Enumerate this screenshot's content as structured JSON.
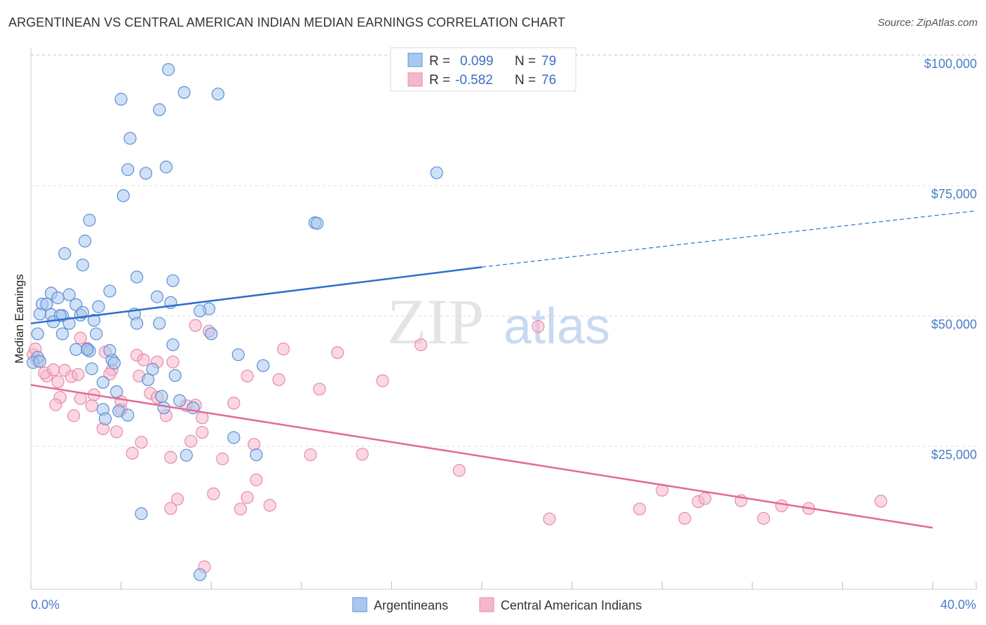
{
  "title": "ARGENTINEAN VS CENTRAL AMERICAN INDIAN MEDIAN EARNINGS CORRELATION CHART",
  "source": "Source: ZipAtlas.com",
  "watermark": {
    "zip": "ZIP",
    "atlas": "atlas"
  },
  "colors": {
    "blue_fill": "#a9c8ef",
    "blue_stroke": "#5b8fd6",
    "blue_line": "#2f6fcf",
    "pink_fill": "#f5b8cb",
    "pink_stroke": "#e889a8",
    "pink_line": "#e46a95",
    "tick": "#4a7cc9",
    "grid": "#dddddd"
  },
  "legend_stats": [
    {
      "r_label": "R = ",
      "r_value": "0.099",
      "n_label": "N = ",
      "n_value": "79",
      "series": "blue"
    },
    {
      "r_label": "R = ",
      "r_value": "-0.582",
      "n_label": "N = ",
      "n_value": "76",
      "series": "pink"
    }
  ],
  "chart_data": {
    "type": "scatter",
    "ylabel": "Median Earnings",
    "xlim": [
      0,
      40
    ],
    "ylim": [
      0,
      105000
    ],
    "y_ticks": [
      {
        "value": 25000,
        "label": "$25,000"
      },
      {
        "value": 50000,
        "label": "$50,000"
      },
      {
        "value": 75000,
        "label": "$75,000"
      },
      {
        "value": 100000,
        "label": "$100,000"
      }
    ],
    "x_tick_labels": [
      {
        "value": 0,
        "label": "0.0%"
      },
      {
        "value": 40,
        "label": "40.0%"
      }
    ],
    "x_minor_ticks": [
      0,
      4,
      8,
      12,
      16,
      20,
      24,
      28,
      32,
      36,
      40
    ],
    "legend": [
      "Argentineans",
      "Central American Indians"
    ],
    "series": [
      {
        "name": "Argentineans",
        "color": "blue",
        "trend": {
          "x1": 0,
          "y1": 51000,
          "x2": 20,
          "y2": 61800,
          "x_dash_end": 40,
          "y_dash_end": 72600
        },
        "points": [
          [
            6.1,
            99700
          ],
          [
            4.0,
            94000
          ],
          [
            6.8,
            95300
          ],
          [
            8.3,
            95000
          ],
          [
            5.7,
            92000
          ],
          [
            4.4,
            86500
          ],
          [
            4.3,
            80500
          ],
          [
            5.1,
            79800
          ],
          [
            6.0,
            81000
          ],
          [
            18.0,
            79900
          ],
          [
            4.1,
            75500
          ],
          [
            2.6,
            70800
          ],
          [
            12.6,
            70300
          ],
          [
            12.7,
            70200
          ],
          [
            2.4,
            66800
          ],
          [
            1.5,
            64400
          ],
          [
            2.3,
            62200
          ],
          [
            4.7,
            59900
          ],
          [
            6.3,
            59200
          ],
          [
            3.5,
            57200
          ],
          [
            0.9,
            56800
          ],
          [
            1.7,
            56500
          ],
          [
            1.2,
            55900
          ],
          [
            5.6,
            56100
          ],
          [
            6.2,
            55000
          ],
          [
            0.5,
            54700
          ],
          [
            0.7,
            54700
          ],
          [
            2.0,
            54600
          ],
          [
            3.0,
            54200
          ],
          [
            7.9,
            53800
          ],
          [
            0.4,
            52800
          ],
          [
            0.9,
            52700
          ],
          [
            1.4,
            52500
          ],
          [
            1.3,
            52500
          ],
          [
            2.2,
            52600
          ],
          [
            2.3,
            53100
          ],
          [
            4.6,
            52800
          ],
          [
            1.0,
            51300
          ],
          [
            2.8,
            51600
          ],
          [
            1.7,
            51000
          ],
          [
            4.7,
            51000
          ],
          [
            5.7,
            51000
          ],
          [
            0.3,
            49000
          ],
          [
            1.4,
            49000
          ],
          [
            2.9,
            49000
          ],
          [
            8.0,
            49000
          ],
          [
            6.3,
            46900
          ],
          [
            2.5,
            46000
          ],
          [
            9.2,
            45000
          ],
          [
            2.6,
            45700
          ],
          [
            3.6,
            44000
          ],
          [
            3.7,
            43400
          ],
          [
            10.3,
            42900
          ],
          [
            2.7,
            42300
          ],
          [
            5.4,
            42200
          ],
          [
            6.4,
            41000
          ],
          [
            5.2,
            40200
          ],
          [
            3.2,
            39700
          ],
          [
            0.3,
            44500
          ],
          [
            3.8,
            37900
          ],
          [
            5.8,
            37000
          ],
          [
            6.6,
            36200
          ],
          [
            3.2,
            34500
          ],
          [
            5.9,
            34800
          ],
          [
            7.2,
            34800
          ],
          [
            3.9,
            34200
          ],
          [
            3.3,
            32700
          ],
          [
            4.3,
            33400
          ],
          [
            9.0,
            29100
          ],
          [
            10.0,
            25800
          ],
          [
            6.9,
            25700
          ],
          [
            4.9,
            14500
          ],
          [
            7.5,
            2800
          ],
          [
            0.1,
            43500
          ],
          [
            0.4,
            43700
          ],
          [
            3.5,
            45800
          ],
          [
            2.5,
            46000
          ],
          [
            7.5,
            53400
          ],
          [
            2.0,
            46000
          ]
        ]
      },
      {
        "name": "Central American Indians",
        "color": "pink",
        "trend": {
          "x1": 0,
          "y1": 39200,
          "x2": 40,
          "y2": 11800
        },
        "points": [
          [
            0.1,
            45000
          ],
          [
            0.3,
            43800
          ],
          [
            0.7,
            40900
          ],
          [
            0.6,
            41500
          ],
          [
            1.0,
            42100
          ],
          [
            1.2,
            39800
          ],
          [
            1.5,
            42000
          ],
          [
            1.8,
            40800
          ],
          [
            2.2,
            48200
          ],
          [
            2.5,
            46200
          ],
          [
            1.9,
            33300
          ],
          [
            1.3,
            36800
          ],
          [
            1.1,
            35400
          ],
          [
            2.2,
            36600
          ],
          [
            2.8,
            37300
          ],
          [
            2.7,
            35200
          ],
          [
            3.3,
            45500
          ],
          [
            3.6,
            42100
          ],
          [
            3.5,
            41300
          ],
          [
            4.0,
            34500
          ],
          [
            4.0,
            36000
          ],
          [
            4.7,
            44900
          ],
          [
            5.0,
            44000
          ],
          [
            5.6,
            43600
          ],
          [
            6.3,
            43600
          ],
          [
            4.8,
            40900
          ],
          [
            5.3,
            37600
          ],
          [
            5.6,
            36800
          ],
          [
            6.0,
            33300
          ],
          [
            6.9,
            35200
          ],
          [
            7.3,
            35300
          ],
          [
            7.6,
            32900
          ],
          [
            3.2,
            30800
          ],
          [
            3.8,
            30200
          ],
          [
            4.5,
            26100
          ],
          [
            4.9,
            28200
          ],
          [
            6.2,
            25300
          ],
          [
            7.1,
            28400
          ],
          [
            7.6,
            30100
          ],
          [
            8.5,
            25000
          ],
          [
            9.0,
            35700
          ],
          [
            9.6,
            40900
          ],
          [
            9.9,
            27800
          ],
          [
            7.3,
            50600
          ],
          [
            7.9,
            49500
          ],
          [
            11.0,
            40200
          ],
          [
            11.2,
            46100
          ],
          [
            12.8,
            38400
          ],
          [
            13.6,
            45400
          ],
          [
            15.6,
            40000
          ],
          [
            17.3,
            46900
          ],
          [
            22.5,
            50400
          ],
          [
            12.4,
            25800
          ],
          [
            14.7,
            25900
          ],
          [
            19.0,
            22800
          ],
          [
            10.0,
            21000
          ],
          [
            8.1,
            18300
          ],
          [
            9.6,
            17600
          ],
          [
            6.5,
            17300
          ],
          [
            6.2,
            15500
          ],
          [
            9.3,
            15400
          ],
          [
            10.6,
            16100
          ],
          [
            7.7,
            4300
          ],
          [
            23.0,
            13500
          ],
          [
            27.0,
            15400
          ],
          [
            28.0,
            19000
          ],
          [
            29.0,
            13600
          ],
          [
            29.6,
            16800
          ],
          [
            29.9,
            17400
          ],
          [
            31.5,
            17000
          ],
          [
            32.5,
            13600
          ],
          [
            33.3,
            16000
          ],
          [
            34.5,
            15500
          ],
          [
            37.7,
            16900
          ],
          [
            2.1,
            41200
          ],
          [
            0.2,
            46100
          ]
        ]
      }
    ]
  }
}
